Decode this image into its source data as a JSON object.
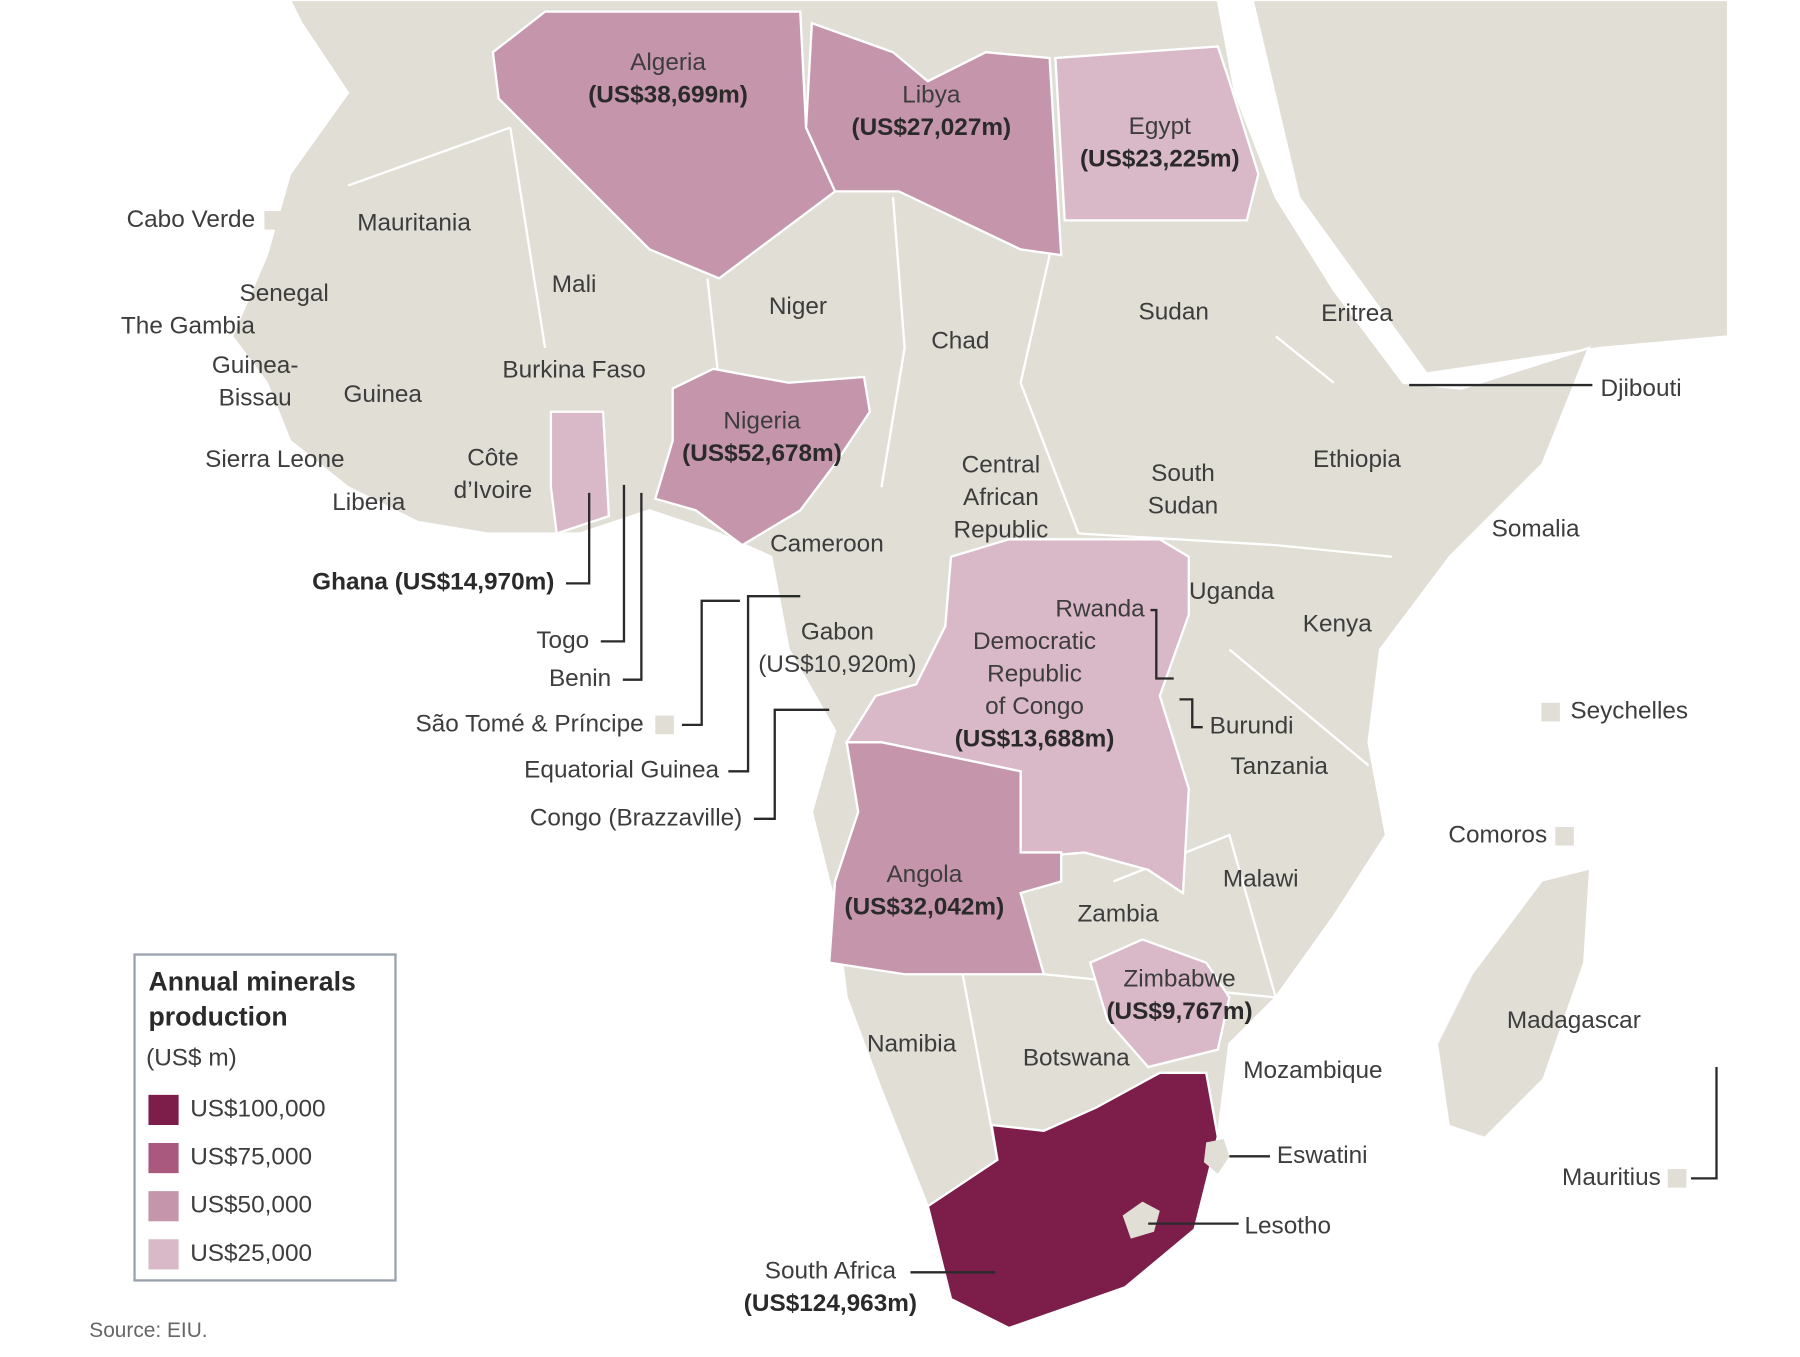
{
  "map": {
    "countries": [
      {
        "name": [
          "Algeria"
        ],
        "value": "(US$38,699m)",
        "color": "#c595ab"
      },
      {
        "name": [
          "Libya"
        ],
        "value": "(US$27,027m)",
        "color": "#c595ab"
      },
      {
        "name": [
          "Egypt"
        ],
        "value": "(US$23,225m)",
        "color": "#d9b8c7"
      },
      {
        "name": [
          "Cabo Verde"
        ]
      },
      {
        "name": [
          "Mauritania"
        ]
      },
      {
        "name": [
          "Mali"
        ]
      },
      {
        "name": [
          "Niger"
        ]
      },
      {
        "name": [
          "Chad"
        ]
      },
      {
        "name": [
          "Sudan"
        ]
      },
      {
        "name": [
          "Eritrea"
        ]
      },
      {
        "name": [
          "Djibouti"
        ]
      },
      {
        "name": [
          "Senegal"
        ]
      },
      {
        "name": [
          "The Gambia"
        ]
      },
      {
        "name": [
          "Guinea-",
          "Bissau"
        ]
      },
      {
        "name": [
          "Guinea"
        ]
      },
      {
        "name": [
          "Burkina Faso"
        ]
      },
      {
        "name": [
          "Nigeria"
        ],
        "value": "(US$52,678m)",
        "color": "#c595ab"
      },
      {
        "name": [
          "Sierra Leone"
        ]
      },
      {
        "name": [
          "Côte",
          "d’Ivoire"
        ]
      },
      {
        "name": [
          "Liberia"
        ]
      },
      {
        "name": [
          "Central",
          "African",
          "Republic"
        ]
      },
      {
        "name": [
          "South",
          "Sudan"
        ]
      },
      {
        "name": [
          "Ethiopia"
        ]
      },
      {
        "name": [
          "Somalia"
        ]
      },
      {
        "name": [
          "Cameroon"
        ]
      },
      {
        "name": [
          "Ghana"
        ],
        "value": "(US$14,970m)",
        "color": "#d9b8c7"
      },
      {
        "name": [
          "Uganda"
        ]
      },
      {
        "name": [
          "Kenya"
        ]
      },
      {
        "name": [
          "Rwanda"
        ]
      },
      {
        "name": [
          "Togo"
        ]
      },
      {
        "name": [
          "Benin"
        ]
      },
      {
        "name": [
          "Gabon"
        ],
        "value": "(US$10,920m)"
      },
      {
        "name": [
          "Democratic",
          "Republic",
          "of Congo"
        ],
        "value": "(US$13,688m)",
        "color": "#d9b8c7"
      },
      {
        "name": [
          "Burundi"
        ]
      },
      {
        "name": [
          "Seychelles"
        ]
      },
      {
        "name": [
          "São Tomé & Príncipe"
        ]
      },
      {
        "name": [
          "Tanzania"
        ]
      },
      {
        "name": [
          "Equatorial Guinea"
        ]
      },
      {
        "name": [
          "Congo (Brazzaville)"
        ]
      },
      {
        "name": [
          "Comoros"
        ]
      },
      {
        "name": [
          "Angola"
        ],
        "value": "(US$32,042m)",
        "color": "#c595ab"
      },
      {
        "name": [
          "Malawi"
        ]
      },
      {
        "name": [
          "Zambia"
        ]
      },
      {
        "name": [
          "Zimbabwe"
        ],
        "value": "(US$9,767m)",
        "color": "#d9b8c7"
      },
      {
        "name": [
          "Madagascar"
        ]
      },
      {
        "name": [
          "Namibia"
        ]
      },
      {
        "name": [
          "Botswana"
        ]
      },
      {
        "name": [
          "Mozambique"
        ]
      },
      {
        "name": [
          "Eswatini"
        ]
      },
      {
        "name": [
          "Mauritius"
        ]
      },
      {
        "name": [
          "Lesotho"
        ]
      },
      {
        "name": [
          "South Africa"
        ],
        "value": "(US$124,963m)",
        "color": "#7d1d49"
      }
    ],
    "legend": {
      "title": [
        "Annual minerals",
        "production"
      ],
      "unit": "(US$ m)",
      "items": [
        {
          "label": "US$100,000",
          "color": "#7d1d49"
        },
        {
          "label": "US$75,000",
          "color": "#a9587e"
        },
        {
          "label": "US$50,000",
          "color": "#c595ab"
        },
        {
          "label": "US$25,000",
          "color": "#d9b8c7"
        }
      ]
    },
    "source": "Source: EIU."
  }
}
